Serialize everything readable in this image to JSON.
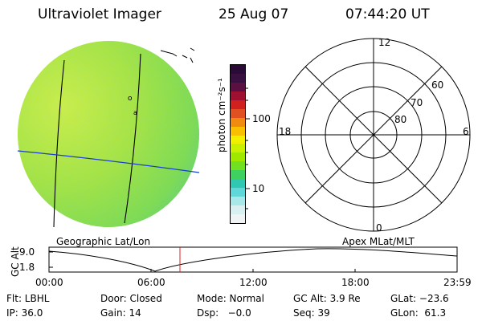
{
  "header": {
    "instrument": "Ultraviolet Imager",
    "date": "25 Aug 07",
    "time": "07:44:20 UT"
  },
  "colorbar": {
    "unit_label": "photon cm⁻²s⁻¹",
    "ticks": [
      "100",
      "10"
    ],
    "colors": [
      "#2a0a36",
      "#3a1040",
      "#5a1040",
      "#a01030",
      "#d02020",
      "#e05020",
      "#f08a10",
      "#f8c000",
      "#f0f000",
      "#c8f000",
      "#a0e800",
      "#70e020",
      "#40d060",
      "#30c8b0",
      "#60d8d8",
      "#a8e8e8",
      "#d8f0f0",
      "#f0f4f4"
    ]
  },
  "polar_grid": {
    "mlt_labels": {
      "top": "12",
      "left": "18",
      "right": "6",
      "bottom": "0"
    },
    "lat_labels": [
      "60",
      "70",
      "80"
    ]
  },
  "timeline": {
    "left_title": "Geographic Lat/Lon",
    "right_title": "Apex MLat/MLT",
    "y_label": "GC Alt",
    "y_ticks": [
      "9.0",
      "1.8"
    ],
    "x_ticks": [
      "00:00",
      "06:00",
      "12:00",
      "18:00",
      "23:59"
    ],
    "marker_color": "#dd2222"
  },
  "info": {
    "flt": "Flt: LBHL",
    "door": "Door: Closed",
    "mode": "Mode: Normal",
    "gc_alt": "GC Alt: 3.9 Re",
    "glat": "GLat: −23.6",
    "ip": "IP: 36.0",
    "gain": "Gain: 14",
    "dsp": "Dsp:   −0.0",
    "seq": "Seq: 39",
    "glon": "GLon:  61.3"
  }
}
